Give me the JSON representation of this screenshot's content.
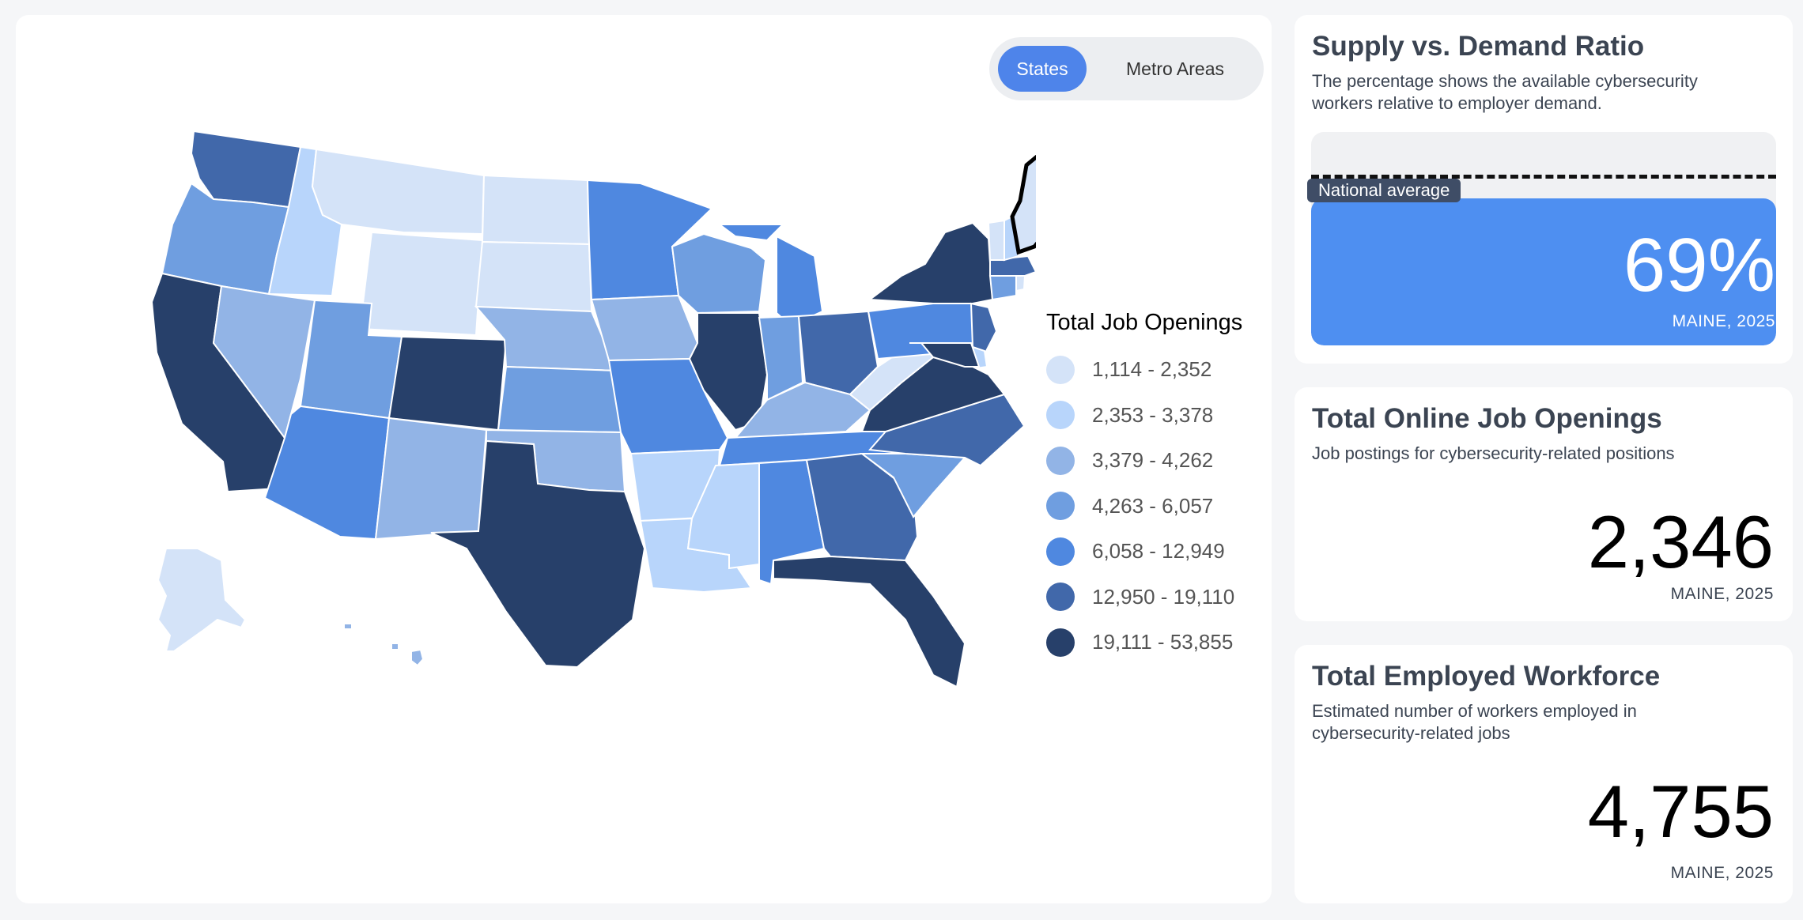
{
  "toggle": {
    "states_label": "States",
    "metro_label": "Metro Areas",
    "selected": "States"
  },
  "map": {
    "selected_state": "Maine",
    "legend": {
      "title": "Total Job Openings",
      "bins": [
        {
          "label": "1,114 - 2,352",
          "color": "#d4e3f8"
        },
        {
          "label": "2,353 - 3,378",
          "color": "#b8d5fb"
        },
        {
          "label": "3,379 - 4,262",
          "color": "#92b4e6"
        },
        {
          "label": "4,263 - 6,057",
          "color": "#6f9ee0"
        },
        {
          "label": "6,058 - 12,949",
          "color": "#4f88e0"
        },
        {
          "label": "12,950 - 19,110",
          "color": "#4168aa"
        },
        {
          "label": "19,111 - 53,855",
          "color": "#27406a"
        }
      ]
    },
    "state_bins": {
      "WA": 5,
      "OR": 3,
      "CA": 6,
      "ID": 1,
      "NV": 2,
      "MT": 0,
      "WY": 0,
      "UT": 3,
      "AZ": 4,
      "CO": 6,
      "NM": 2,
      "ND": 0,
      "SD": 0,
      "NE": 2,
      "KS": 3,
      "OK": 2,
      "TX": 6,
      "MN": 4,
      "IA": 2,
      "MO": 4,
      "AR": 1,
      "LA": 1,
      "WI": 3,
      "IL": 6,
      "MI": 4,
      "IN": 3,
      "OH": 5,
      "KY": 2,
      "TN": 4,
      "MS": 1,
      "AL": 4,
      "GA": 5,
      "FL": 6,
      "SC": 3,
      "NC": 5,
      "VA": 6,
      "WV": 0,
      "PA": 4,
      "NY": 6,
      "ME": 0,
      "NH": 1,
      "VT": 0,
      "MA": 5,
      "CT": 3,
      "RI": 0,
      "NJ": 5,
      "MD": 6,
      "DE": 1,
      "AK": 0,
      "HI": 2
    }
  },
  "ratio_card": {
    "title": "Supply vs. Demand Ratio",
    "description": "The percentage shows the available cybersecurity workers relative to employer demand.",
    "national_average_label": "National average",
    "value": "69%",
    "ratio_fraction": 0.69,
    "national_average_fraction": 0.8,
    "caption": "MAINE, 2025"
  },
  "openings_card": {
    "title": "Total Online Job Openings",
    "description": "Job postings for cybersecurity-related positions",
    "value": "2,346",
    "caption": "MAINE, 2025"
  },
  "workforce_card": {
    "title": "Total Employed Workforce",
    "description": "Estimated number of workers employed in cybersecurity-related jobs",
    "value": "4,755",
    "caption": "MAINE, 2025"
  }
}
